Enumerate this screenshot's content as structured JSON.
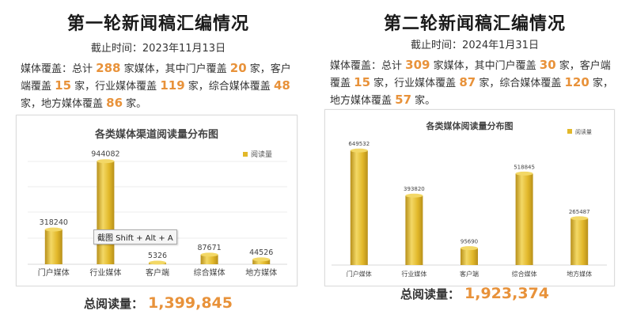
{
  "left": {
    "title": "第一轮新闻稿汇编情况",
    "deadline": "截止时间：2023年11月13日",
    "coverage": {
      "p1": "媒体覆盖：总计",
      "n_total": "288",
      "p2": "家媒体，其中门户覆盖",
      "n_portal": "20",
      "p3": "家，客户端覆盖",
      "n_client": "15",
      "p4": "家，行业媒体覆盖",
      "n_industry": "119",
      "p5": "家，综合媒体覆盖",
      "n_general": "48",
      "p6": "家，地方媒体覆盖",
      "n_local": "86",
      "p7": "家。"
    },
    "total_label": "总阅读量：",
    "total_value": "1,399,845",
    "tooltip": "截图 Shift + Alt + A"
  },
  "right": {
    "title": "第二轮新闻稿汇编情况",
    "deadline": "截止时间：2024年1月31日",
    "coverage": {
      "p1": "媒体覆盖：总计",
      "n_total": "309",
      "p2": "家媒体，其中门户覆盖",
      "n_portal": "30",
      "p3": "家，客户端覆盖",
      "n_client": "15",
      "p4": "家，行业媒体覆盖",
      "n_industry": "87",
      "p5": "家，综合媒体覆盖",
      "n_general": "120",
      "p6": "家，地方媒体覆盖",
      "n_local": "57",
      "p7": "家。"
    },
    "total_label": "总阅读量：",
    "total_value": "1,923,374"
  },
  "colors": {
    "bar_light": "#f3d866",
    "bar_mid": "#e2b82a",
    "bar_dark": "#b8901a",
    "accent": "#e8923a"
  },
  "chart_data": [
    {
      "type": "bar",
      "title": "各类媒体渠道阅读量分布图",
      "categories": [
        "门户媒体",
        "行业媒体",
        "客户端",
        "综合媒体",
        "地方媒体"
      ],
      "series": [
        {
          "name": "阅读量",
          "values": [
            318240,
            944082,
            5326,
            87671,
            44526
          ]
        }
      ],
      "ylim": [
        0,
        1000000
      ],
      "grid": true,
      "legend": "top-right"
    },
    {
      "type": "bar",
      "title": "各类媒体阅读量分布图",
      "categories": [
        "门户媒体",
        "行业媒体",
        "客户端",
        "综合媒体",
        "地方媒体"
      ],
      "series": [
        {
          "name": "阅读量",
          "values": [
            649532,
            393820,
            95690,
            518845,
            265487
          ]
        }
      ],
      "ylim": [
        0,
        700000
      ],
      "grid": false,
      "legend": "top-right"
    }
  ]
}
